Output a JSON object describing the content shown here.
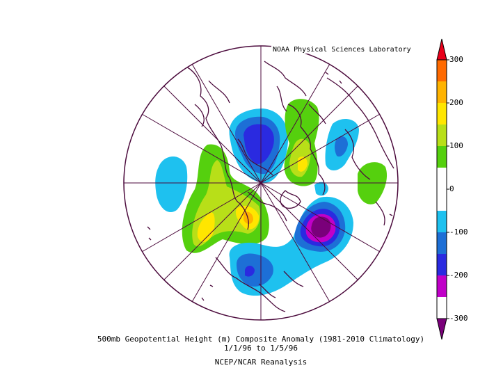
{
  "credit": "NOAA Physical Sciences Laboratory",
  "caption": {
    "line1": "500mb Geopotential Height (m) Composite Anomaly (1981-2010 Climatology)",
    "line2": "1/1/96  to 1/5/96",
    "line3": "NCEP/NCAR Reanalysis"
  },
  "colorbar": {
    "ticks": [
      {
        "value": 300,
        "label": "300"
      },
      {
        "value": 200,
        "label": "200"
      },
      {
        "value": 100,
        "label": "100"
      },
      {
        "value": 0,
        "label": "0"
      },
      {
        "value": -100,
        "label": "-100"
      },
      {
        "value": -200,
        "label": "-200"
      },
      {
        "value": -300,
        "label": "-300"
      }
    ],
    "bands": [
      {
        "from": 300,
        "color": "#e8001a"
      },
      {
        "from": 250,
        "color": "#ff6a00"
      },
      {
        "from": 200,
        "color": "#ffb300"
      },
      {
        "from": 150,
        "color": "#ffe600"
      },
      {
        "from": 100,
        "color": "#b8df18"
      },
      {
        "from": 50,
        "color": "#55d00e"
      },
      {
        "from": 0,
        "color": "#ffffff"
      },
      {
        "from": -50,
        "color": "#ffffff"
      },
      {
        "from": -100,
        "color": "#1ec1ef"
      },
      {
        "from": -150,
        "color": "#1d6fd6"
      },
      {
        "from": -200,
        "color": "#2a2ae0"
      },
      {
        "from": -250,
        "color": "#c000c8"
      },
      {
        "from": -300,
        "color": "#7a007a"
      }
    ]
  },
  "colors": {
    "coastline": "#4b0a3c",
    "grid": "#4b0a3c"
  }
}
